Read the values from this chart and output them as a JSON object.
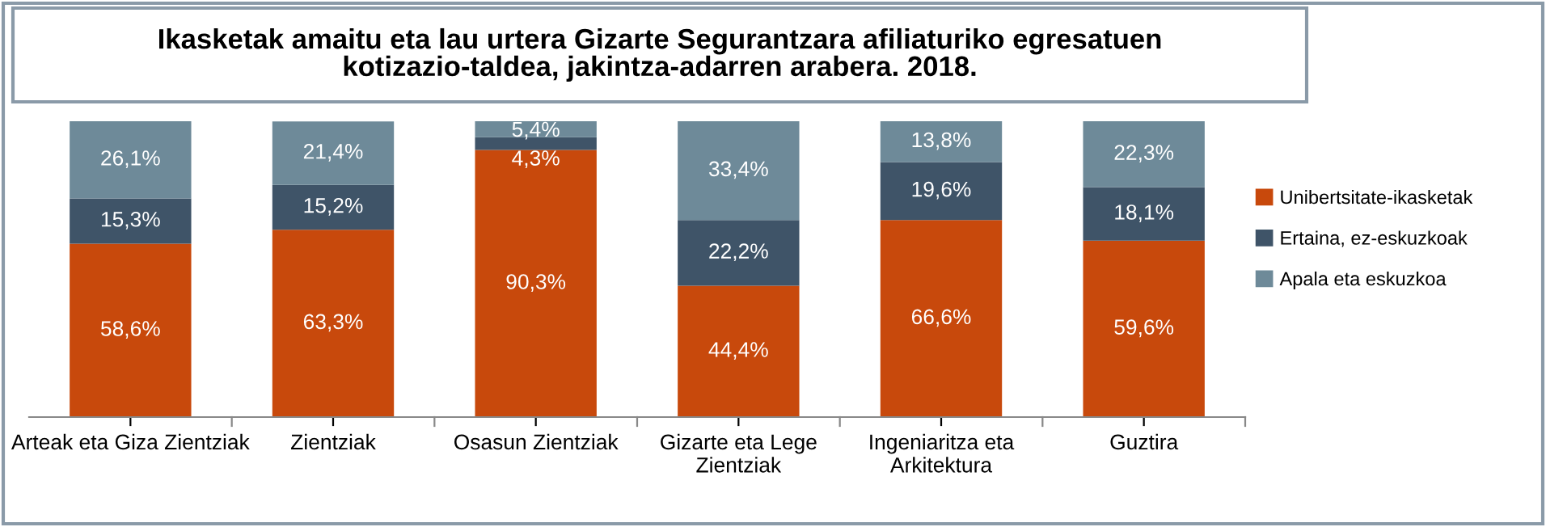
{
  "chart_data": {
    "type": "bar",
    "stacked": true,
    "title": "Ikasketak amaitu eta lau urtera Gizarte Segurantzara afiliaturiko egresatuen\nkotizazio-taldea, jakintza-adarren arabera. 2018.",
    "categories": [
      "Arteak eta Giza Zientziak",
      "Zientziak",
      "Osasun Zientziak",
      "Gizarte eta Lege\nZientziak",
      "Ingeniaritza eta\nArkitektura",
      "Guztira"
    ],
    "ylim": [
      0,
      100
    ],
    "tick_labels": "x",
    "grid": false,
    "legend": "right",
    "series": [
      {
        "name": "Unibertsitate-ikasketak",
        "color": "#c8490c",
        "values": [
          58.6,
          63.3,
          90.3,
          44.4,
          66.6,
          59.6
        ],
        "value_labels": [
          "58,6%",
          "63,3%",
          "90,3%",
          "44,4%",
          "66,6%",
          "59,6%"
        ]
      },
      {
        "name": "Ertaina, ez-eskuzkoak",
        "color": "#3f5468",
        "values": [
          15.3,
          15.2,
          4.3,
          22.2,
          19.6,
          18.1
        ],
        "value_labels": [
          "15,3%",
          "15,2%",
          "4,3%",
          "22,2%",
          "19,6%",
          "18,1%"
        ]
      },
      {
        "name": "Apala eta eskuzkoa",
        "color": "#6e8a99",
        "values": [
          26.1,
          21.4,
          5.4,
          33.4,
          13.8,
          22.3
        ],
        "value_labels": [
          "26,1%",
          "21,4%",
          "5,4%",
          "33,4%",
          "13,8%",
          "22,3%"
        ]
      }
    ]
  }
}
